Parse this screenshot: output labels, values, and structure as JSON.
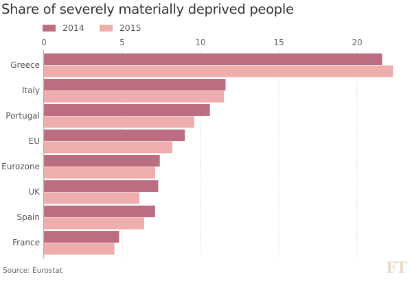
{
  "chart_data": {
    "type": "bar",
    "orientation": "horizontal",
    "title": "Share of severely materially deprived people",
    "xlabel": "",
    "ylabel": "",
    "xlim": [
      0,
      22.5
    ],
    "xticks": [
      0,
      5,
      10,
      15,
      20
    ],
    "xtick_labels": [
      "0",
      "5",
      "10",
      "15",
      "20"
    ],
    "grid": true,
    "legend_position": "top-left",
    "categories": [
      "Greece",
      "Italy",
      "Portugal",
      "EU",
      "Eurozone",
      "UK",
      "Spain",
      "France"
    ],
    "series": [
      {
        "name": "2014",
        "color": "#bd6d81",
        "values": [
          21.6,
          11.6,
          10.6,
          9.0,
          7.4,
          7.3,
          7.1,
          4.8
        ]
      },
      {
        "name": "2015",
        "color": "#eeaeae",
        "values": [
          22.3,
          11.5,
          9.6,
          8.2,
          7.1,
          6.1,
          6.4,
          4.5
        ]
      }
    ],
    "source": "Source: Eurostat"
  },
  "branding": {
    "logo": "FT",
    "logo_color": "#e8dccd"
  },
  "colors": {
    "axis": "#b9b4ae",
    "grid": "#cfcac3"
  }
}
